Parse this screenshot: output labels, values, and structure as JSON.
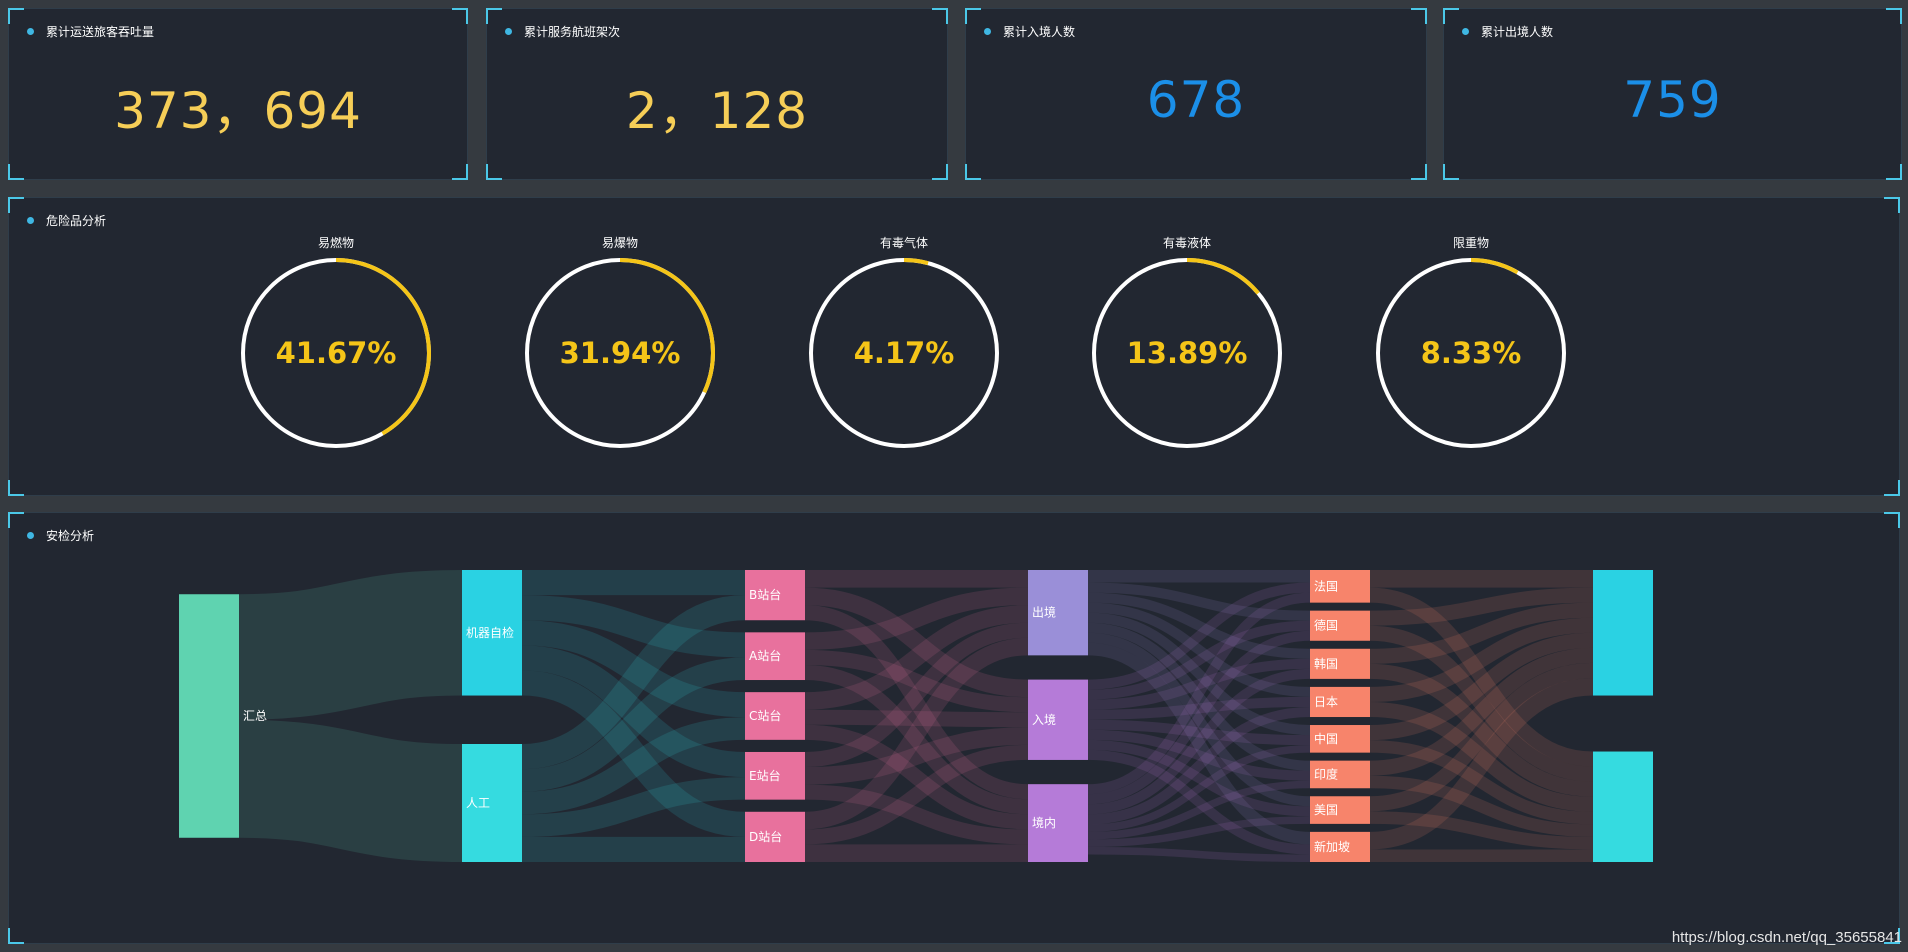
{
  "stats": [
    {
      "title": "累计运送旅客吞吐量",
      "value": "373，694",
      "color": "#f6ce57"
    },
    {
      "title": "累计服务航班架次",
      "value": "2，128",
      "color": "#f6ce57"
    },
    {
      "title": "累计入境人数",
      "value": "678",
      "color": "#1b8fe8"
    },
    {
      "title": "累计出境人数",
      "value": "759",
      "color": "#1b8fe8"
    }
  ],
  "hazard": {
    "title": "危险品分析",
    "accent": "#f5c518",
    "items": [
      {
        "label": "易燃物",
        "percent_text": "41.67%",
        "percent": 41.67
      },
      {
        "label": "易爆物",
        "percent_text": "31.94%",
        "percent": 31.94
      },
      {
        "label": "有毒气体",
        "percent_text": "4.17%",
        "percent": 4.17
      },
      {
        "label": "有毒液体",
        "percent_text": "13.89%",
        "percent": 13.89
      },
      {
        "label": "限重物",
        "percent_text": "8.33%",
        "percent": 8.33
      }
    ]
  },
  "security": {
    "title": "安检分析"
  },
  "chart_data": {
    "type": "sankey",
    "columns": [
      [
        {
          "name": "汇总",
          "label": "汇总",
          "color": "#5fd3b0"
        }
      ],
      [
        {
          "name": "机器自检",
          "label": "机器自检",
          "color": "#2ad2e3"
        },
        {
          "name": "人工",
          "label": "人工",
          "color": "#35dbe0"
        }
      ],
      [
        {
          "name": "B站台",
          "label": "B站台",
          "color": "#e8719d"
        },
        {
          "name": "A站台",
          "label": "A站台",
          "color": "#e8719d"
        },
        {
          "name": "C站台",
          "label": "C站台",
          "color": "#e8719d"
        },
        {
          "name": "E站台",
          "label": "E站台",
          "color": "#e8719d"
        },
        {
          "name": "D站台",
          "label": "D站台",
          "color": "#e8719d"
        }
      ],
      [
        {
          "name": "出境",
          "label": "出境",
          "color": "#9a8fd8"
        },
        {
          "name": "入境",
          "label": "入境",
          "color": "#b57bd8"
        },
        {
          "name": "境内",
          "label": "境内",
          "color": "#b57bd8"
        }
      ],
      [
        {
          "name": "法国",
          "label": "法国",
          "color": "#f7846b"
        },
        {
          "name": "德国",
          "label": "德国",
          "color": "#f7846b"
        },
        {
          "name": "韩国",
          "label": "韩国",
          "color": "#f7846b"
        },
        {
          "name": "日本",
          "label": "日本",
          "color": "#f7846b"
        },
        {
          "name": "中国",
          "label": "中国",
          "color": "#f7846b"
        },
        {
          "name": "印度",
          "label": "印度",
          "color": "#f7846b"
        },
        {
          "name": "美国",
          "label": "美国",
          "color": "#f7846b"
        },
        {
          "name": "新加坡",
          "label": "新加坡",
          "color": "#f7846b"
        }
      ],
      [
        {
          "name": "sink1",
          "label": "",
          "color": "#2ad2e3"
        },
        {
          "name": "sink2",
          "label": "",
          "color": "#35dbe0"
        }
      ]
    ],
    "links": [
      {
        "source": "汇总",
        "target": "机器自检",
        "value": 50
      },
      {
        "source": "汇总",
        "target": "人工",
        "value": 47
      },
      {
        "source": "机器自检",
        "target": "B站台",
        "value": 10
      },
      {
        "source": "机器自检",
        "target": "A站台",
        "value": 10
      },
      {
        "source": "机器自检",
        "target": "C站台",
        "value": 10
      },
      {
        "source": "机器自检",
        "target": "E站台",
        "value": 10
      },
      {
        "source": "机器自检",
        "target": "D站台",
        "value": 10
      },
      {
        "source": "人工",
        "target": "B站台",
        "value": 10
      },
      {
        "source": "人工",
        "target": "A站台",
        "value": 9
      },
      {
        "source": "人工",
        "target": "C站台",
        "value": 9
      },
      {
        "source": "人工",
        "target": "E站台",
        "value": 9
      },
      {
        "source": "人工",
        "target": "D站台",
        "value": 10
      },
      {
        "source": "B站台",
        "target": "出境",
        "value": 7
      },
      {
        "source": "B站台",
        "target": "入境",
        "value": 7
      },
      {
        "source": "B站台",
        "target": "境内",
        "value": 6
      },
      {
        "source": "A站台",
        "target": "出境",
        "value": 7
      },
      {
        "source": "A站台",
        "target": "入境",
        "value": 6
      },
      {
        "source": "A站台",
        "target": "境内",
        "value": 6
      },
      {
        "source": "C站台",
        "target": "出境",
        "value": 7
      },
      {
        "source": "C站台",
        "target": "入境",
        "value": 6
      },
      {
        "source": "C站台",
        "target": "境内",
        "value": 6
      },
      {
        "source": "E站台",
        "target": "出境",
        "value": 6
      },
      {
        "source": "E站台",
        "target": "入境",
        "value": 7
      },
      {
        "source": "E站台",
        "target": "境内",
        "value": 6
      },
      {
        "source": "D站台",
        "target": "出境",
        "value": 7
      },
      {
        "source": "D站台",
        "target": "入境",
        "value": 6
      },
      {
        "source": "D站台",
        "target": "境内",
        "value": 7
      },
      {
        "source": "出境",
        "target": "法国",
        "value": 5
      },
      {
        "source": "出境",
        "target": "德国",
        "value": 4
      },
      {
        "source": "出境",
        "target": "韩国",
        "value": 4
      },
      {
        "source": "出境",
        "target": "日本",
        "value": 4
      },
      {
        "source": "出境",
        "target": "中国",
        "value": 4
      },
      {
        "source": "出境",
        "target": "印度",
        "value": 4
      },
      {
        "source": "出境",
        "target": "美国",
        "value": 4
      },
      {
        "source": "出境",
        "target": "新加坡",
        "value": 5
      },
      {
        "source": "入境",
        "target": "法国",
        "value": 4
      },
      {
        "source": "入境",
        "target": "德国",
        "value": 4
      },
      {
        "source": "入境",
        "target": "韩国",
        "value": 4
      },
      {
        "source": "入境",
        "target": "日本",
        "value": 4
      },
      {
        "source": "入境",
        "target": "中国",
        "value": 4
      },
      {
        "source": "入境",
        "target": "印度",
        "value": 4
      },
      {
        "source": "入境",
        "target": "美国",
        "value": 4
      },
      {
        "source": "入境",
        "target": "新加坡",
        "value": 4
      },
      {
        "source": "境内",
        "target": "法国",
        "value": 4
      },
      {
        "source": "境内",
        "target": "德国",
        "value": 4
      },
      {
        "source": "境内",
        "target": "韩国",
        "value": 4
      },
      {
        "source": "境内",
        "target": "日本",
        "value": 4
      },
      {
        "source": "境内",
        "target": "中国",
        "value": 3
      },
      {
        "source": "境内",
        "target": "印度",
        "value": 3
      },
      {
        "source": "境内",
        "target": "美国",
        "value": 3
      },
      {
        "source": "境内",
        "target": "新加坡",
        "value": 3
      },
      {
        "source": "法国",
        "target": "sink1",
        "value": 7
      },
      {
        "source": "法国",
        "target": "sink2",
        "value": 6
      },
      {
        "source": "德国",
        "target": "sink1",
        "value": 6
      },
      {
        "source": "德国",
        "target": "sink2",
        "value": 6
      },
      {
        "source": "韩国",
        "target": "sink1",
        "value": 6
      },
      {
        "source": "韩国",
        "target": "sink2",
        "value": 6
      },
      {
        "source": "日本",
        "target": "sink1",
        "value": 6
      },
      {
        "source": "日本",
        "target": "sink2",
        "value": 6
      },
      {
        "source": "中国",
        "target": "sink1",
        "value": 6
      },
      {
        "source": "中国",
        "target": "sink2",
        "value": 5
      },
      {
        "source": "印度",
        "target": "sink1",
        "value": 6
      },
      {
        "source": "印度",
        "target": "sink2",
        "value": 5
      },
      {
        "source": "美国",
        "target": "sink1",
        "value": 6
      },
      {
        "source": "美国",
        "target": "sink2",
        "value": 5
      },
      {
        "source": "新加坡",
        "target": "sink1",
        "value": 7
      },
      {
        "source": "新加坡",
        "target": "sink2",
        "value": 5
      }
    ]
  },
  "watermark": "https://blog.csdn.net/qq_35655841"
}
